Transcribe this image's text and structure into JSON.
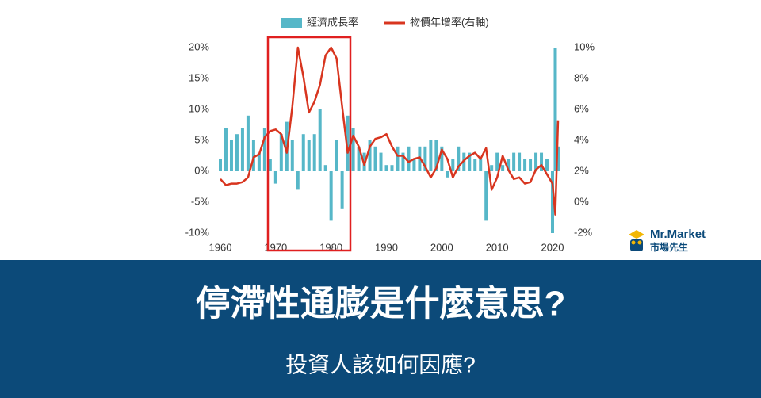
{
  "chart_data": {
    "type": "bar-line",
    "x": [
      1960,
      1961,
      1962,
      1963,
      1964,
      1965,
      1966,
      1967,
      1968,
      1969,
      1970,
      1971,
      1972,
      1973,
      1974,
      1975,
      1976,
      1977,
      1978,
      1979,
      1980,
      1981,
      1982,
      1983,
      1984,
      1985,
      1986,
      1987,
      1988,
      1989,
      1990,
      1991,
      1992,
      1993,
      1994,
      1995,
      1996,
      1997,
      1998,
      1999,
      2000,
      2001,
      2002,
      2003,
      2004,
      2005,
      2006,
      2007,
      2008,
      2009,
      2010,
      2011,
      2012,
      2013,
      2014,
      2015,
      2016,
      2017,
      2018,
      2019,
      2020,
      2020.5,
      2021
    ],
    "series": [
      {
        "name": "經濟成長率",
        "color": "#56b7c8",
        "axis": "y",
        "values": [
          2,
          7,
          5,
          6,
          7,
          9,
          5,
          3,
          7,
          2,
          -2,
          6,
          8,
          5,
          -3,
          6,
          5,
          6,
          10,
          1,
          -8,
          5,
          -6,
          9,
          7,
          4,
          3,
          5,
          4,
          3,
          1,
          1,
          4,
          3,
          4,
          2,
          4,
          4,
          5,
          5,
          4,
          -1,
          2,
          4,
          3,
          3,
          2,
          2,
          -8,
          1,
          3,
          1,
          2,
          3,
          3,
          2,
          2,
          3,
          3,
          2,
          -10,
          20,
          4
        ]
      },
      {
        "name": "物價年增率(右軸)",
        "color": "#d8351f",
        "axis": "y2",
        "values": [
          1.5,
          1.1,
          1.2,
          1.2,
          1.3,
          1.6,
          2.9,
          3.1,
          4.2,
          4.6,
          4.7,
          4.4,
          3.2,
          6.2,
          10,
          8.1,
          5.8,
          6.5,
          7.6,
          9.5,
          10,
          9.3,
          6.2,
          3.2,
          4.3,
          3.6,
          2.4,
          3.6,
          4.1,
          4.2,
          4.4,
          3.6,
          3.0,
          3.0,
          2.6,
          2.8,
          2.9,
          2.3,
          1.6,
          2.2,
          3.4,
          2.8,
          1.6,
          2.3,
          2.7,
          3.0,
          3.2,
          2.8,
          3.5,
          0.8,
          1.6,
          3.0,
          2.1,
          1.5,
          1.6,
          1.2,
          1.3,
          2.1,
          2.4,
          1.8,
          1.2,
          -0.8,
          5.3
        ]
      }
    ],
    "xlim": [
      1958,
      2023
    ],
    "xticks": [
      1960,
      1970,
      1980,
      1990,
      2000,
      2010,
      2020
    ],
    "ylim": [
      -10,
      20
    ],
    "yticks": [
      {
        "value": 20,
        "label": "20%"
      },
      {
        "value": 15,
        "label": "15%"
      },
      {
        "value": 10,
        "label": "10%"
      },
      {
        "value": 5,
        "label": "5%"
      },
      {
        "value": 0,
        "label": "0%"
      },
      {
        "value": -5,
        "label": "-5%"
      },
      {
        "value": -10,
        "label": "-10%"
      }
    ],
    "y2lim": [
      -2,
      10
    ],
    "y2ticks": [
      {
        "value": 10,
        "label": "10%"
      },
      {
        "value": 8,
        "label": "8%"
      },
      {
        "value": 6,
        "label": "6%"
      },
      {
        "value": 4,
        "label": "4%"
      },
      {
        "value": 2,
        "label": "2%"
      },
      {
        "value": 0,
        "label": "0%"
      },
      {
        "value": -2,
        "label": "-2%"
      }
    ],
    "grid": false,
    "legend": "top"
  },
  "logo": {
    "name": "Mr.Market",
    "subtitle": "市場先生"
  },
  "banner": {
    "title": "停滯性通膨是什麼意思?",
    "subtitle": "投資人該如何因應?"
  }
}
